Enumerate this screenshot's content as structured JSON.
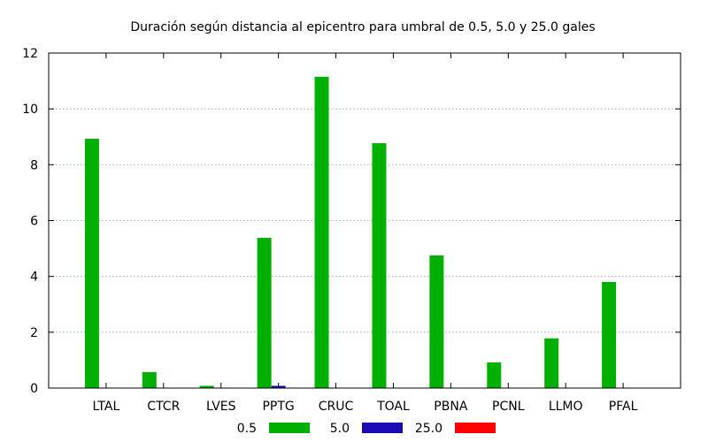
{
  "chart_data": {
    "type": "bar",
    "title": "Duración según distancia al epicentro para umbral de 0.5, 5.0 y 25.0 gales",
    "xlabel": "",
    "ylabel": "",
    "categories": [
      "LTAL",
      "CTCR",
      "LVES",
      "PPTG",
      "CRUC",
      "TOAL",
      "PBNA",
      "PCNL",
      "LLMO",
      "PFAL"
    ],
    "ylim": [
      0,
      12
    ],
    "yticks": [
      0,
      2,
      4,
      6,
      8,
      10,
      12
    ],
    "grid": true,
    "legend_position": "bottom",
    "series": [
      {
        "name": "0.5",
        "color": "#00b000",
        "values": [
          8.93,
          0.57,
          0.08,
          5.38,
          11.15,
          8.77,
          4.75,
          0.92,
          1.78,
          3.8
        ]
      },
      {
        "name": "5.0",
        "color": "#1a0cb5",
        "values": [
          0,
          0,
          0,
          0.08,
          0,
          0,
          0,
          0,
          0,
          0
        ]
      },
      {
        "name": "25.0",
        "color": "#ff0000",
        "values": [
          0,
          0,
          0,
          0,
          0,
          0,
          0,
          0,
          0,
          0
        ]
      }
    ]
  }
}
